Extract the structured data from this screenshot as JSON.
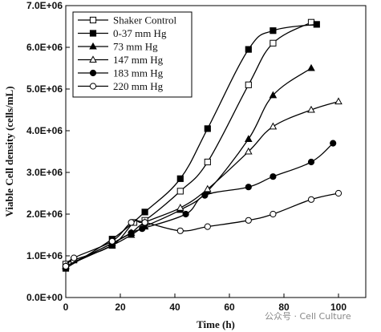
{
  "chart_data": {
    "type": "line",
    "xlabel": "Time (h)",
    "ylabel": "Viable Cell density (cells/mL)",
    "xlim": [
      0,
      110
    ],
    "ylim": [
      0,
      7000000
    ],
    "xticks": [
      0,
      20,
      40,
      60,
      80,
      100
    ],
    "xtick_labels": [
      "0",
      "20",
      "40",
      "60",
      "80",
      "100"
    ],
    "yticks": [
      0,
      1000000,
      2000000,
      3000000,
      4000000,
      5000000,
      6000000,
      7000000
    ],
    "ytick_labels": [
      "0.0E+00",
      "1.0E+06",
      "2.0E+06",
      "3.0E+06",
      "4.0E+06",
      "5.0E+06",
      "6.0E+06",
      "7.0E+06"
    ],
    "grid": false,
    "legend_position": "top-left",
    "series": [
      {
        "name": "Shaker Control",
        "marker": "open-square",
        "x": [
          0,
          3,
          17,
          25,
          29,
          42,
          52,
          67,
          76,
          90
        ],
        "y": [
          800000,
          900000,
          1250000,
          1800000,
          1850000,
          2550000,
          3250000,
          5100000,
          6100000,
          6600000
        ]
      },
      {
        "name": "0-37 mm Hg",
        "marker": "filled-square",
        "x": [
          0,
          17,
          29,
          42,
          52,
          67,
          76,
          92
        ],
        "y": [
          700000,
          1400000,
          2050000,
          2850000,
          4050000,
          5950000,
          6400000,
          6550000
        ]
      },
      {
        "name": "73 mm Hg",
        "marker": "filled-triangle",
        "x": [
          0,
          17,
          24,
          29,
          42,
          52,
          67,
          76,
          90
        ],
        "y": [
          750000,
          1250000,
          1500000,
          1700000,
          2100000,
          2550000,
          3800000,
          4850000,
          5500000
        ]
      },
      {
        "name": "147 mm Hg",
        "marker": "open-triangle",
        "x": [
          0,
          17,
          24,
          29,
          42,
          52,
          67,
          76,
          90,
          100
        ],
        "y": [
          750000,
          1300000,
          1550000,
          1800000,
          2150000,
          2600000,
          3500000,
          4100000,
          4500000,
          4700000
        ]
      },
      {
        "name": "183 mm Hg",
        "marker": "filled-circle",
        "x": [
          0,
          17,
          24,
          28,
          44,
          51,
          67,
          76,
          90,
          98
        ],
        "y": [
          750000,
          1300000,
          1550000,
          1650000,
          2000000,
          2450000,
          2650000,
          2900000,
          3250000,
          3700000
        ]
      },
      {
        "name": "220 mm Hg",
        "marker": "open-circle",
        "x": [
          0,
          3,
          17,
          24,
          29,
          42,
          52,
          67,
          76,
          90,
          100
        ],
        "y": [
          750000,
          950000,
          1350000,
          1800000,
          1800000,
          1600000,
          1700000,
          1850000,
          2000000,
          2350000,
          2500000
        ]
      }
    ]
  },
  "watermark": {
    "text": "公众号 · Cell Culture"
  }
}
